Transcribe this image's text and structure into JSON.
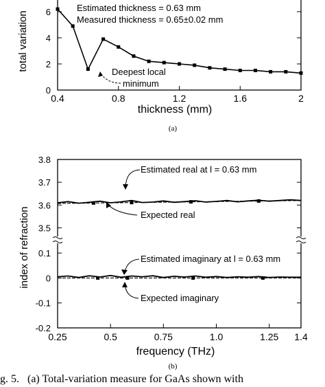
{
  "chart_data": [
    {
      "type": "line",
      "panel_label": "(a)",
      "xlabel": "thickness (mm)",
      "ylabel": "total variation",
      "xlim": [
        0.4,
        2.0
      ],
      "ylim": [
        0,
        7
      ],
      "xticks": [
        "0.4",
        "0.8",
        "1.2",
        "1.6",
        "2"
      ],
      "yticks": [
        "0",
        "2",
        "4",
        "6"
      ],
      "series": [
        {
          "x": [
            0.4,
            0.5,
            0.6,
            0.7,
            0.8,
            0.9,
            1.0,
            1.1,
            1.2,
            1.3,
            1.4,
            1.5,
            1.6,
            1.7,
            1.8,
            1.9,
            2.0
          ],
          "y": [
            6.2,
            4.9,
            1.6,
            3.9,
            3.3,
            2.6,
            2.2,
            2.1,
            2.0,
            1.9,
            1.7,
            1.6,
            1.5,
            1.5,
            1.4,
            1.4,
            1.3
          ]
        }
      ],
      "annotations": {
        "estimated": "Estimated thickness = 0.63 mm",
        "measured": "Measured thickness = 0.65±0.02 mm",
        "deepest_line1": "Deepest local",
        "deepest_line2": "minimum"
      }
    },
    {
      "type": "line",
      "panel_label": "(b)",
      "xlabel": "frequency (THz)",
      "ylabel": "index of refraction",
      "xlim": [
        0.25,
        1.4
      ],
      "ylim_upper": [
        3.45,
        3.8
      ],
      "ylim_lower": [
        -0.2,
        0.15
      ],
      "xticks": [
        "0.25",
        "0.5",
        "0.75",
        "1.0",
        "1.25",
        "1.4"
      ],
      "yticks_upper": [
        "3.5",
        "3.6",
        "3.7",
        "3.8"
      ],
      "yticks_lower": [
        "-0.2",
        "-0.1",
        "0",
        "0.1"
      ],
      "series": [
        {
          "x": [
            0.25,
            0.3,
            0.35,
            0.4,
            0.45,
            0.5,
            0.55,
            0.6,
            0.65,
            0.7,
            0.75,
            0.8,
            0.85,
            0.9,
            0.95,
            1.0,
            1.05,
            1.1,
            1.15,
            1.2,
            1.25,
            1.3,
            1.35,
            1.4
          ],
          "y": [
            3.61,
            3.615,
            3.608,
            3.612,
            3.617,
            3.61,
            3.614,
            3.62,
            3.611,
            3.613,
            3.618,
            3.612,
            3.615,
            3.619,
            3.613,
            3.616,
            3.62,
            3.614,
            3.618,
            3.621,
            3.617,
            3.62,
            3.623,
            3.62
          ]
        },
        {
          "x": [
            0.25,
            1.4
          ],
          "y": [
            3.607,
            3.62
          ],
          "markers_x": [
            0.42,
            0.6,
            0.88,
            1.2
          ]
        },
        {
          "x": [
            0.25,
            0.3,
            0.35,
            0.4,
            0.45,
            0.5,
            0.55,
            0.6,
            0.65,
            0.7,
            0.75,
            0.8,
            0.85,
            0.9,
            0.95,
            1.0,
            1.05,
            1.1,
            1.15,
            1.2,
            1.25,
            1.3,
            1.35,
            1.4
          ],
          "y": [
            0.005,
            0.008,
            0.002,
            0.009,
            0.004,
            0.01,
            0.003,
            0.008,
            0.005,
            0.009,
            0.002,
            0.007,
            0.004,
            0.008,
            0.003,
            0.006,
            0.002,
            0.005,
            0.003,
            0.006,
            0.002,
            0.004,
            0.003,
            0.003
          ]
        },
        {
          "x": [
            0.25,
            1.4
          ],
          "y": [
            0.0,
            0.0
          ],
          "markers_x": [
            0.44,
            0.58,
            0.89,
            1.22
          ]
        }
      ],
      "annotations": {
        "est_real": "Estimated real at l = 0.63 mm",
        "exp_real": "Expected real",
        "est_imag": "Estimated imaginary at l = 0.63 mm",
        "exp_imag": "Expected imaginary"
      }
    }
  ],
  "caption": "g. 5.   (a) Total-variation measure for GaAs shown with"
}
